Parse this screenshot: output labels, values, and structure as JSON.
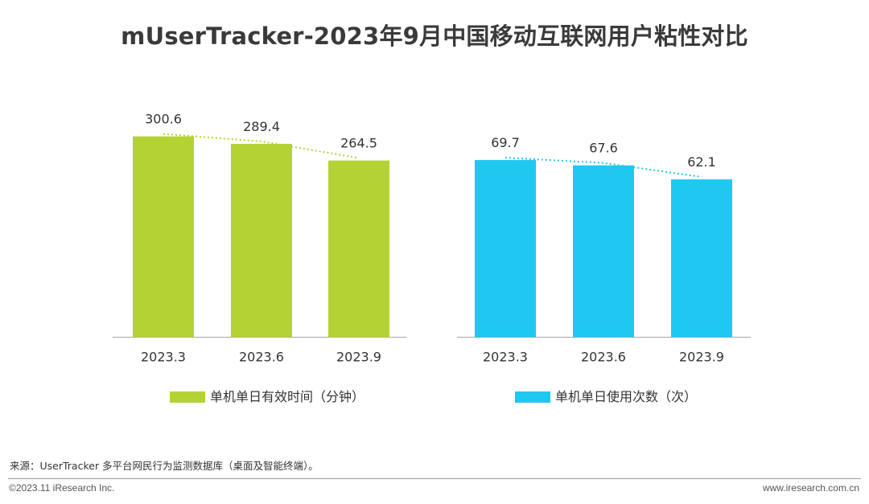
{
  "title": "mUserTracker-2023年9月中国移动互联网用户粘性对比",
  "chart_data": [
    {
      "type": "bar",
      "categories": [
        "2023.3",
        "2023.6",
        "2023.9"
      ],
      "series": [
        {
          "name": "单机单日有效时间（分钟）",
          "values": [
            300.6,
            289.4,
            264.5
          ]
        }
      ],
      "trendline": true,
      "color": "#b3d335",
      "trend_color": "#b3d335",
      "ylim": [
        0,
        320
      ]
    },
    {
      "type": "bar",
      "categories": [
        "2023.3",
        "2023.6",
        "2023.9"
      ],
      "series": [
        {
          "name": "单机单日使用次数（次）",
          "values": [
            69.7,
            67.6,
            62.1
          ]
        }
      ],
      "trendline": true,
      "color": "#1fc8f0",
      "trend_color": "#1fc8f0",
      "ylim": [
        0,
        74
      ]
    }
  ],
  "footer": {
    "source": "来源：UserTracker 多平台网民行为监测数据库（桌面及智能终端）。",
    "copyright": "©2023.11 iResearch Inc.",
    "website": "www.iresearch.com.cn"
  }
}
